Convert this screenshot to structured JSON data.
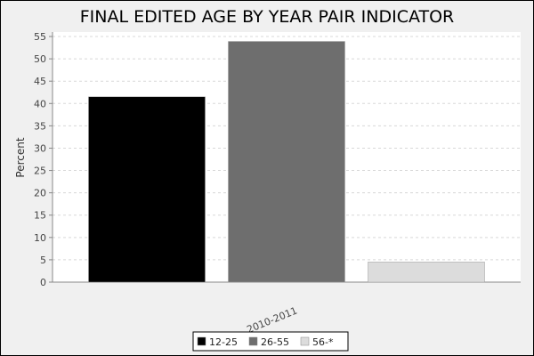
{
  "chart_data": {
    "type": "bar",
    "title": "FINAL EDITED AGE BY YEAR PAIR INDICATOR",
    "xlabel": "",
    "ylabel": "Percent",
    "categories": [
      "2010-2011"
    ],
    "series": [
      {
        "name": "12-25",
        "values": [
          41.5
        ],
        "color": "#000000"
      },
      {
        "name": "26-55",
        "values": [
          53.9
        ],
        "color": "#6e6e6e"
      },
      {
        "name": "56-*",
        "values": [
          4.5
        ],
        "color": "#dcdcdc"
      }
    ],
    "ylim": [
      0,
      56
    ],
    "yticks": [
      0,
      5,
      10,
      15,
      20,
      25,
      30,
      35,
      40,
      45,
      50,
      55
    ],
    "grid": true,
    "legend_position": "bottom"
  }
}
